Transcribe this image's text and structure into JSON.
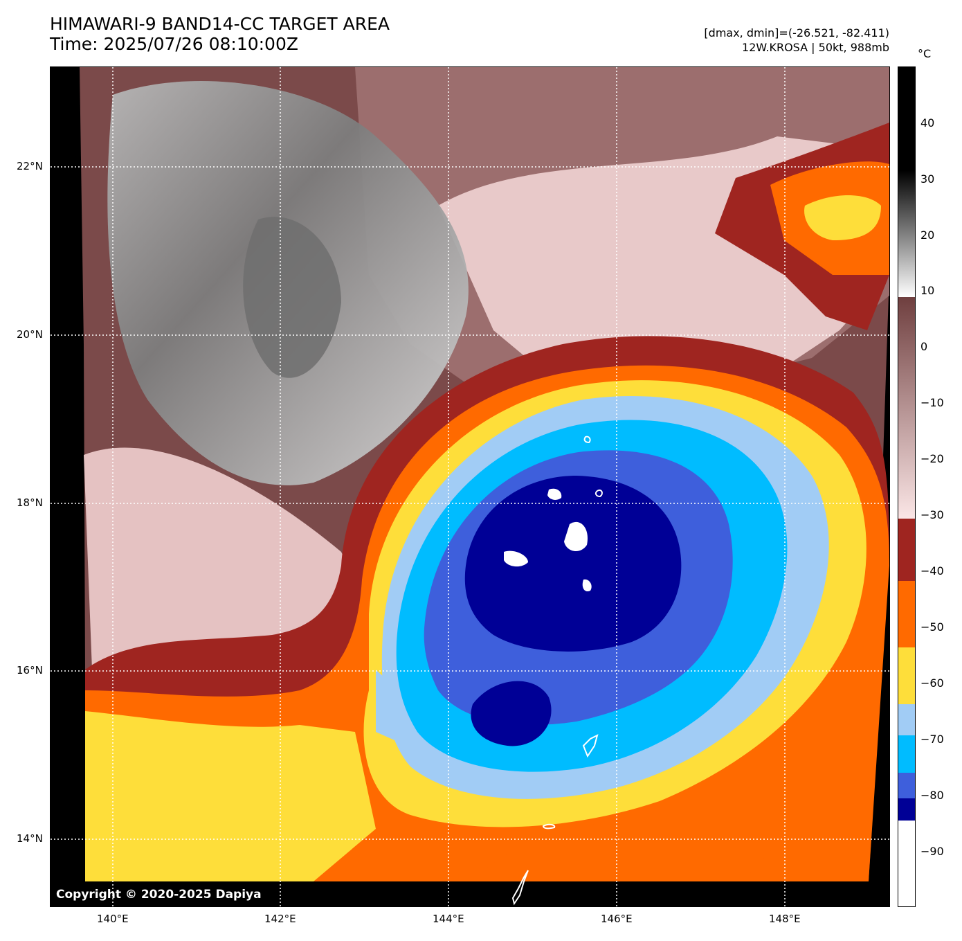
{
  "header": {
    "title_line1": "HIMAWARI-9 BAND14-CC TARGET AREA",
    "title_line2": "Time: 2025/07/26 08:10:00Z",
    "info_line1": "[dmax, dmin]=(-26.521, -82.411)",
    "info_line2": "12W.KROSA | 50kt, 988mb"
  },
  "map": {
    "copyright": "Copyright © 2020-2025 Dapiya",
    "lat_labels": [
      "22°N",
      "20°N",
      "18°N",
      "16°N",
      "14°N"
    ],
    "lon_labels": [
      "140°E",
      "142°E",
      "144°E",
      "146°E",
      "148°E"
    ],
    "center_lat": 17.5,
    "center_lon": 145.8
  },
  "colorbar": {
    "unit": "°C",
    "ticks": [
      "40",
      "30",
      "20",
      "10",
      "0",
      "−10",
      "−20",
      "−30",
      "−40",
      "−50",
      "−60",
      "−70",
      "−80",
      "−90"
    ],
    "bands": [
      {
        "range": "-30 to -38",
        "color": "#9f2520"
      },
      {
        "range": "-38 to -50",
        "color": "#ff6a00"
      },
      {
        "range": "-50 to -62",
        "color": "#fede3a"
      },
      {
        "range": "-62 to -66",
        "color": "#a1ccf5"
      },
      {
        "range": "-66 to -75",
        "color": "#00bcff"
      },
      {
        "range": "-75 to -80",
        "color": "#3e5fdc"
      },
      {
        "range": "-80 to -85",
        "color": "#000096"
      },
      {
        "range": "below -85",
        "color": "#ffffff"
      }
    ]
  }
}
